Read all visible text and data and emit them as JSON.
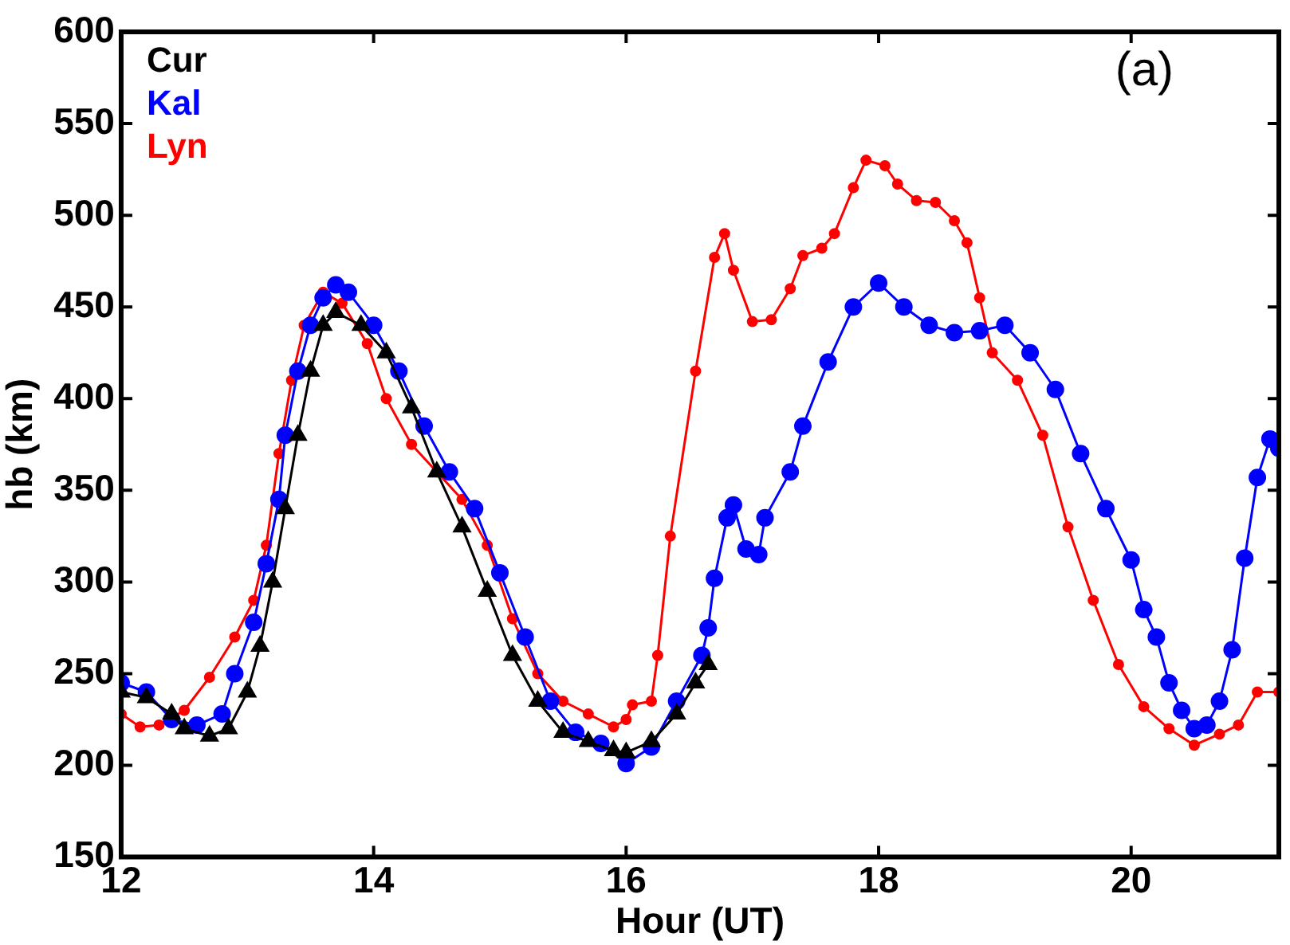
{
  "chart_data": {
    "type": "line",
    "xlabel": "Hour (UT)",
    "ylabel": "hb (km)",
    "xlim": [
      12,
      21.17
    ],
    "xticks": [
      12,
      14,
      16,
      18,
      20
    ],
    "ylim": [
      150,
      600
    ],
    "yticks": [
      150,
      200,
      250,
      300,
      350,
      400,
      450,
      500,
      550,
      600
    ],
    "grid": false,
    "legend": "top left",
    "annotations": [
      "(a)"
    ],
    "series": [
      {
        "name": "Cur",
        "color": "#000000",
        "marker": "triangle",
        "x": [
          12.0,
          12.2,
          12.4,
          12.5,
          12.7,
          12.85,
          13.0,
          13.1,
          13.2,
          13.3,
          13.4,
          13.5,
          13.6,
          13.7,
          13.9,
          14.1,
          14.3,
          14.5,
          14.7,
          14.9,
          15.1,
          15.3,
          15.5,
          15.7,
          15.9,
          16.0,
          16.2,
          16.4,
          16.55,
          16.65
        ],
        "values": [
          240,
          237,
          228,
          220,
          216,
          220,
          240,
          265,
          300,
          340,
          380,
          415,
          440,
          447,
          440,
          425,
          395,
          360,
          330,
          295,
          260,
          235,
          218,
          213,
          208,
          207,
          213,
          228,
          245,
          255
        ]
      },
      {
        "name": "Kal",
        "color": "#0000ff",
        "marker": "circle",
        "x": [
          12.0,
          12.2,
          12.4,
          12.6,
          12.8,
          12.9,
          13.05,
          13.15,
          13.25,
          13.3,
          13.4,
          13.5,
          13.6,
          13.7,
          13.8,
          14.0,
          14.2,
          14.4,
          14.6,
          14.8,
          15.0,
          15.2,
          15.4,
          15.6,
          15.8,
          16.0,
          16.2,
          16.4,
          16.6,
          16.65,
          16.7,
          16.8,
          16.85,
          16.95,
          17.05,
          17.1,
          17.3,
          17.4,
          17.6,
          17.8,
          18.0,
          18.2,
          18.4,
          18.6,
          18.8,
          19.0,
          19.2,
          19.4,
          19.6,
          19.8,
          20.0,
          20.1,
          20.2,
          20.3,
          20.4,
          20.5,
          20.6,
          20.7,
          20.8,
          20.9,
          21.0,
          21.1,
          21.17
        ],
        "values": [
          245,
          240,
          225,
          222,
          228,
          250,
          278,
          310,
          345,
          380,
          415,
          440,
          455,
          462,
          458,
          440,
          415,
          385,
          360,
          340,
          305,
          270,
          235,
          218,
          212,
          201,
          210,
          235,
          260,
          275,
          302,
          335,
          342,
          318,
          315,
          335,
          360,
          385,
          420,
          450,
          463,
          450,
          440,
          436,
          437,
          440,
          425,
          405,
          370,
          340,
          312,
          285,
          270,
          245,
          230,
          220,
          222,
          235,
          263,
          313,
          357,
          378,
          373
        ]
      },
      {
        "name": "Lyn",
        "color": "#ff0000",
        "marker": "circle",
        "x": [
          12.0,
          12.15,
          12.3,
          12.5,
          12.7,
          12.9,
          13.05,
          13.15,
          13.25,
          13.35,
          13.45,
          13.6,
          13.75,
          13.95,
          14.1,
          14.3,
          14.5,
          14.7,
          14.9,
          15.1,
          15.3,
          15.5,
          15.7,
          15.9,
          16.0,
          16.05,
          16.2,
          16.25,
          16.35,
          16.55,
          16.7,
          16.78,
          16.85,
          17.0,
          17.15,
          17.3,
          17.4,
          17.55,
          17.65,
          17.8,
          17.9,
          18.05,
          18.15,
          18.3,
          18.45,
          18.6,
          18.7,
          18.8,
          18.9,
          19.1,
          19.3,
          19.5,
          19.7,
          19.9,
          20.1,
          20.3,
          20.5,
          20.7,
          20.85,
          21.0,
          21.17
        ],
        "values": [
          228,
          221,
          222,
          230,
          248,
          270,
          290,
          320,
          370,
          410,
          440,
          458,
          452,
          430,
          400,
          375,
          360,
          345,
          320,
          280,
          250,
          235,
          228,
          221,
          225,
          233,
          235,
          260,
          325,
          415,
          477,
          490,
          470,
          442,
          443,
          460,
          478,
          482,
          490,
          515,
          530,
          527,
          517,
          508,
          507,
          497,
          485,
          455,
          425,
          410,
          380,
          330,
          290,
          255,
          232,
          220,
          211,
          217,
          222,
          240,
          240
        ]
      }
    ]
  }
}
